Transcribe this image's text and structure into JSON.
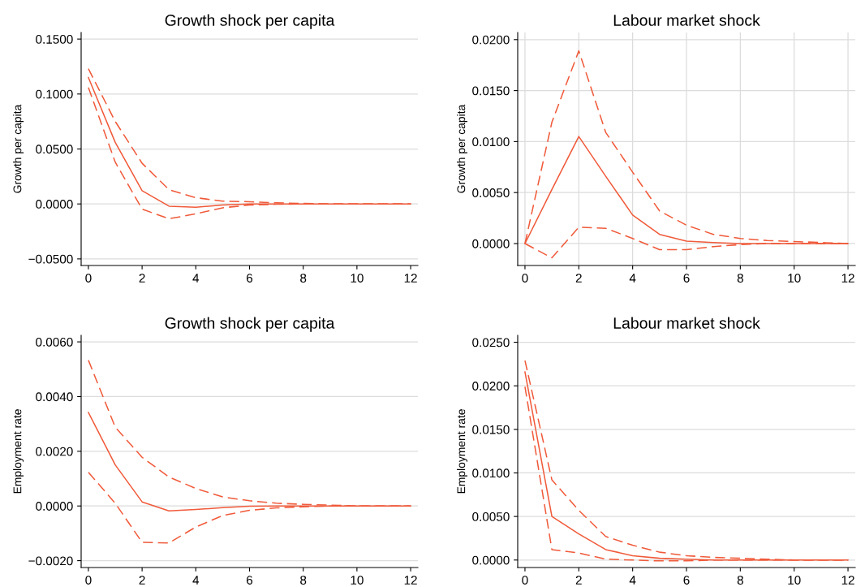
{
  "chart_data": [
    {
      "type": "line",
      "title": "Growth shock per capita",
      "ylabel": "Growth per capita",
      "x": [
        0,
        1,
        2,
        3,
        4,
        5,
        6,
        7,
        8,
        9,
        10,
        11,
        12
      ],
      "grid": "y",
      "xlim": [
        -0.27,
        12.27
      ],
      "xticks": [
        0,
        2,
        4,
        6,
        8,
        10,
        12
      ],
      "ylim": [
        -0.056,
        0.156
      ],
      "yticks": [
        {
          "value": -0.05,
          "label": "−0.0500"
        },
        {
          "value": 0,
          "label": "0.0000"
        },
        {
          "value": 0.05,
          "label": "0.0500"
        },
        {
          "value": 0.1,
          "label": "0.1000"
        },
        {
          "value": 0.15,
          "label": "0.1500"
        }
      ],
      "series": [
        {
          "color": "#f05a3a",
          "line_style": "solid",
          "values": [
            0.115,
            0.056,
            0.012,
            -0.002,
            -0.003,
            -0.001,
            0,
            0,
            0,
            0,
            0,
            0,
            0
          ]
        },
        {
          "color": "#f05a3a",
          "line_style": "dashed",
          "values": [
            0.123,
            0.075,
            0.037,
            0.013,
            0.0057,
            0.0025,
            0.002,
            0.001,
            0.0005,
            0,
            0,
            0,
            0
          ]
        },
        {
          "color": "#f05a3a",
          "line_style": "dashed",
          "values": [
            0.106,
            0.038,
            -0.0047,
            -0.0135,
            -0.009,
            -0.0035,
            -0.001,
            -0.0003,
            0,
            0,
            0,
            0,
            0
          ]
        }
      ]
    },
    {
      "type": "line",
      "title": "Labour market shock",
      "ylabel": "Growth per capita",
      "x": [
        0,
        1,
        2,
        3,
        4,
        5,
        6,
        7,
        8,
        9,
        10,
        11,
        12
      ],
      "grid": true,
      "xlim": [
        -0.27,
        12.27
      ],
      "xticks": [
        0,
        2,
        4,
        6,
        8,
        10,
        12
      ],
      "ylim": [
        -0.00215,
        0.0207
      ],
      "yticks": [
        {
          "value": 0,
          "label": "0.0000"
        },
        {
          "value": 0.005,
          "label": "0.0050"
        },
        {
          "value": 0.01,
          "label": "0.0100"
        },
        {
          "value": 0.015,
          "label": "0.0150"
        },
        {
          "value": 0.02,
          "label": "0.0200"
        }
      ],
      "series": [
        {
          "color": "#f05a3a",
          "line_style": "solid",
          "values": [
            0,
            0.0053,
            0.0105,
            0.0066,
            0.0028,
            0.0009,
            0.00024,
            0.0001,
            0,
            0,
            0,
            0,
            0
          ]
        },
        {
          "color": "#f05a3a",
          "line_style": "dashed",
          "values": [
            0,
            0.0119,
            0.0189,
            0.0109,
            0.007,
            0.0032,
            0.0018,
            0.0009,
            0.0005,
            0.0003,
            0.0002,
            0.0001,
            0
          ]
        },
        {
          "color": "#f05a3a",
          "line_style": "dashed",
          "values": [
            0,
            -0.0014,
            0.0016,
            0.0015,
            0.0005,
            -0.0006,
            -0.0006,
            -0.0003,
            -0.0001,
            0,
            0,
            0,
            0
          ]
        }
      ]
    },
    {
      "type": "line",
      "title": "Growth shock per capita",
      "ylabel": "Employment rate",
      "x": [
        0,
        1,
        2,
        3,
        4,
        5,
        6,
        7,
        8,
        9,
        10,
        11,
        12
      ],
      "grid": "y",
      "xlim": [
        -0.27,
        12.27
      ],
      "xticks": [
        0,
        2,
        4,
        6,
        8,
        10,
        12
      ],
      "ylim": [
        -0.00225,
        0.00624
      ],
      "yticks": [
        {
          "value": -0.002,
          "label": "−0.0020"
        },
        {
          "value": 0,
          "label": "0.0000"
        },
        {
          "value": 0.002,
          "label": "0.0020"
        },
        {
          "value": 0.004,
          "label": "0.0040"
        },
        {
          "value": 0.006,
          "label": "0.0060"
        }
      ],
      "series": [
        {
          "color": "#f05a3a",
          "line_style": "solid",
          "values": [
            0.00342,
            0.0015,
            0.00015,
            -0.00018,
            -0.00013,
            -6e-05,
            -1e-05,
            0,
            0,
            0,
            0,
            0,
            0
          ]
        },
        {
          "color": "#f05a3a",
          "line_style": "dashed",
          "values": [
            0.00533,
            0.00288,
            0.00178,
            0.00106,
            0.00064,
            0.00033,
            0.00019,
            0.0001,
            6e-05,
            3e-05,
            0,
            0,
            0
          ]
        },
        {
          "color": "#f05a3a",
          "line_style": "dashed",
          "values": [
            0.00123,
            0.0001,
            -0.00133,
            -0.00135,
            -0.00077,
            -0.00035,
            -0.00016,
            -7e-05,
            -3e-05,
            0,
            0,
            0,
            0
          ]
        }
      ]
    },
    {
      "type": "line",
      "title": "Labour market shock",
      "ylabel": "Employment rate",
      "x": [
        0,
        1,
        2,
        3,
        4,
        5,
        6,
        7,
        8,
        9,
        10,
        11,
        12
      ],
      "grid": "y",
      "xlim": [
        -0.27,
        12.27
      ],
      "xticks": [
        0,
        2,
        4,
        6,
        8,
        10,
        12
      ],
      "ylim": [
        -0.00086,
        0.0258
      ],
      "yticks": [
        {
          "value": 0,
          "label": "0.0000"
        },
        {
          "value": 0.005,
          "label": "0.0050"
        },
        {
          "value": 0.01,
          "label": "0.0100"
        },
        {
          "value": 0.015,
          "label": "0.0150"
        },
        {
          "value": 0.02,
          "label": "0.0200"
        },
        {
          "value": 0.025,
          "label": "0.0250"
        }
      ],
      "series": [
        {
          "color": "#f05a3a",
          "line_style": "solid",
          "values": [
            0.0216,
            0.005,
            0.003,
            0.0012,
            0.0005,
            0.0002,
            0.0001,
            0,
            0,
            0,
            0,
            0,
            0
          ]
        },
        {
          "color": "#f05a3a",
          "line_style": "dashed",
          "values": [
            0.0229,
            0.0092,
            0.0057,
            0.0027,
            0.0017,
            0.0009,
            0.0005,
            0.0003,
            0.0002,
            0.0001,
            0,
            0,
            0
          ]
        },
        {
          "color": "#f05a3a",
          "line_style": "dashed",
          "values": [
            0.0199,
            0.0012,
            0.0008,
            0.0001,
            0,
            -0.0001,
            -0.0001,
            0,
            0,
            0,
            0,
            0,
            0
          ]
        }
      ]
    }
  ]
}
